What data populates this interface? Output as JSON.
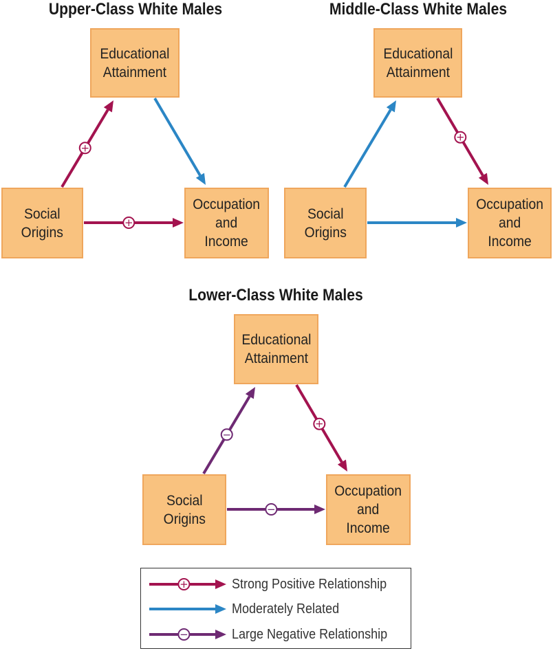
{
  "colors": {
    "strong_positive": "#a3134f",
    "moderate": "#2b86c5",
    "large_negative": "#6e2a73",
    "box_fill": "#f9c27f",
    "box_border": "#efa65c"
  },
  "diagrams": [
    {
      "title": "Upper-Class White Males",
      "education_label": "Educational\nAttainment",
      "origins_label": "Social\nOrigins",
      "occupation_label": "Occupation\nand\nIncome",
      "origins_to_education": "strong_positive",
      "education_to_occupation": "moderate",
      "origins_to_occupation": "strong_positive"
    },
    {
      "title": "Middle-Class White Males",
      "education_label": "Educational\nAttainment",
      "origins_label": "Social\nOrigins",
      "occupation_label": "Occupation\nand\nIncome",
      "origins_to_education": "moderate",
      "education_to_occupation": "strong_positive",
      "origins_to_occupation": "moderate"
    },
    {
      "title": "Lower-Class White Males",
      "education_label": "Educational\nAttainment",
      "origins_label": "Social\nOrigins",
      "occupation_label": "Occupation\nand\nIncome",
      "origins_to_education": "large_negative",
      "education_to_occupation": "strong_positive",
      "origins_to_occupation": "large_negative"
    }
  ],
  "legend": {
    "strong_positive": "Strong Positive Relationship",
    "moderate": "Moderately Related",
    "large_negative": "Large Negative Relationship"
  },
  "symbols": {
    "plus": "+",
    "minus": "−"
  }
}
